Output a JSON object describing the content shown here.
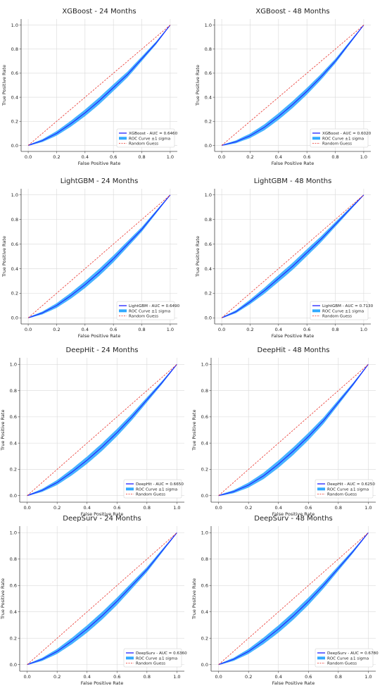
{
  "colors": {
    "roc_line": "#1f1fff",
    "band": "#33aaff",
    "random": "#e8312a",
    "grid": "#d9d9d9",
    "axis": "#444444"
  },
  "chart_data": [
    {
      "type": "line",
      "title": "XGBoost - 24 Months",
      "xlabel": "False Positive Rate",
      "ylabel": "True Positive Rate",
      "xlim": [
        0,
        1
      ],
      "ylim": [
        0,
        1
      ],
      "xticks": [
        "0.0",
        "0.2",
        "0.4",
        "0.6",
        "0.8",
        "1.0"
      ],
      "yticks": [
        "0.0",
        "0.2",
        "0.4",
        "0.6",
        "0.8",
        "1.0"
      ],
      "grid": true,
      "legend_position": "lower right",
      "auc": 0.646,
      "series": [
        {
          "name": "XGBoost - AUC = 0.6460",
          "x": [
            0,
            0.1,
            0.2,
            0.3,
            0.4,
            0.5,
            0.6,
            0.7,
            0.8,
            0.9,
            1.0
          ],
          "y": [
            0.0,
            0.04,
            0.1,
            0.18,
            0.27,
            0.37,
            0.48,
            0.59,
            0.72,
            0.85,
            1.0
          ]
        },
        {
          "name": "ROC Curve ±1 sigma",
          "sigma": 0.025
        },
        {
          "name": "Random Guess",
          "x": [
            0,
            1
          ],
          "y": [
            0,
            1
          ]
        }
      ]
    },
    {
      "type": "line",
      "title": "XGBoost - 48 Months",
      "xlabel": "False Positive Rate",
      "ylabel": "True Positive Rate",
      "xlim": [
        0,
        1
      ],
      "ylim": [
        0,
        1
      ],
      "xticks": [
        "0.0",
        "0.2",
        "0.4",
        "0.6",
        "0.8",
        "1.0"
      ],
      "yticks": [
        "0.0",
        "0.2",
        "0.4",
        "0.6",
        "0.8",
        "1.0"
      ],
      "grid": true,
      "legend_position": "lower right",
      "auc": 0.602,
      "series": [
        {
          "name": "XGBoost - AUC = 0.6020",
          "x": [
            0,
            0.1,
            0.2,
            0.3,
            0.4,
            0.5,
            0.6,
            0.7,
            0.8,
            0.9,
            1.0
          ],
          "y": [
            0.0,
            0.03,
            0.08,
            0.15,
            0.24,
            0.34,
            0.45,
            0.57,
            0.7,
            0.85,
            1.0
          ]
        },
        {
          "name": "ROC Curve ±1 sigma",
          "sigma": 0.025
        },
        {
          "name": "Random Guess",
          "x": [
            0,
            1
          ],
          "y": [
            0,
            1
          ]
        }
      ]
    },
    {
      "type": "line",
      "title": "LightGBM - 24 Months",
      "xlabel": "False Positive Rate",
      "ylabel": "True Positive Rate",
      "xlim": [
        0,
        1
      ],
      "ylim": [
        0,
        1
      ],
      "xticks": [
        "0.0",
        "0.2",
        "0.4",
        "0.6",
        "0.8",
        "1.0"
      ],
      "yticks": [
        "0.0",
        "0.2",
        "0.4",
        "0.6",
        "0.8",
        "1.0"
      ],
      "grid": true,
      "legend_position": "lower right",
      "auc": 0.649,
      "series": [
        {
          "name": "LightGBM - AUC = 0.6490",
          "x": [
            0,
            0.1,
            0.2,
            0.3,
            0.4,
            0.5,
            0.6,
            0.7,
            0.8,
            0.9,
            1.0
          ],
          "y": [
            0.0,
            0.04,
            0.1,
            0.18,
            0.27,
            0.37,
            0.48,
            0.6,
            0.72,
            0.86,
            1.0
          ]
        },
        {
          "name": "ROC Curve ±1 sigma",
          "sigma": 0.025
        },
        {
          "name": "Random Guess",
          "x": [
            0,
            1
          ],
          "y": [
            0,
            1
          ]
        }
      ]
    },
    {
      "type": "line",
      "title": "LightGBM - 48 Months",
      "xlabel": "False Positive Rate",
      "ylabel": "True Positive Rate",
      "xlim": [
        0,
        1
      ],
      "ylim": [
        0,
        1
      ],
      "xticks": [
        "0.0",
        "0.2",
        "0.4",
        "0.6",
        "0.8",
        "1.0"
      ],
      "yticks": [
        "0.0",
        "0.2",
        "0.4",
        "0.6",
        "0.8",
        "1.0"
      ],
      "grid": true,
      "legend_position": "lower right",
      "auc": 0.713,
      "series": [
        {
          "name": "LightGBM - AUC = 0.7130",
          "x": [
            0,
            0.1,
            0.2,
            0.3,
            0.4,
            0.5,
            0.6,
            0.7,
            0.8,
            0.9,
            1.0
          ],
          "y": [
            0.0,
            0.05,
            0.13,
            0.22,
            0.32,
            0.42,
            0.53,
            0.64,
            0.76,
            0.88,
            1.0
          ]
        },
        {
          "name": "ROC Curve ±1 sigma",
          "sigma": 0.025
        },
        {
          "name": "Random Guess",
          "x": [
            0,
            1
          ],
          "y": [
            0,
            1
          ]
        }
      ]
    },
    {
      "type": "line",
      "title": "DeepHit - 24 Months",
      "xlabel": "False Positive Rate",
      "ylabel": "True Positive Rate",
      "xlim": [
        0,
        1
      ],
      "ylim": [
        0,
        1
      ],
      "xticks": [
        "0.0",
        "0.2",
        "0.4",
        "0.6",
        "0.8",
        "1.0"
      ],
      "yticks": [
        "0.0",
        "0.2",
        "0.4",
        "0.6",
        "0.8",
        "1.0"
      ],
      "grid": true,
      "legend_position": "lower right",
      "auc": 0.665,
      "series": [
        {
          "name": "DeepHit - AUC = 0.6650",
          "x": [
            0,
            0.1,
            0.2,
            0.3,
            0.4,
            0.5,
            0.6,
            0.7,
            0.8,
            0.9,
            1.0
          ],
          "y": [
            0.0,
            0.04,
            0.1,
            0.18,
            0.27,
            0.37,
            0.48,
            0.6,
            0.73,
            0.86,
            1.0
          ]
        },
        {
          "name": "ROC Curve ±1 sigma",
          "sigma": 0.025
        },
        {
          "name": "Random Guess",
          "x": [
            0,
            1
          ],
          "y": [
            0,
            1
          ]
        }
      ]
    },
    {
      "type": "line",
      "title": "DeepHit - 48 Months",
      "xlabel": "False Positive Rate",
      "ylabel": "True Positive Rate",
      "xlim": [
        0,
        1
      ],
      "ylim": [
        0,
        1
      ],
      "xticks": [
        "0.0",
        "0.2",
        "0.4",
        "0.6",
        "0.8",
        "1.0"
      ],
      "yticks": [
        "0.0",
        "0.2",
        "0.4",
        "0.6",
        "0.8",
        "1.0"
      ],
      "grid": true,
      "legend_position": "lower right",
      "auc": 0.625,
      "series": [
        {
          "name": "DeepHit - AUC = 0.6250",
          "x": [
            0,
            0.1,
            0.2,
            0.3,
            0.4,
            0.5,
            0.6,
            0.7,
            0.8,
            0.9,
            1.0
          ],
          "y": [
            0.0,
            0.03,
            0.08,
            0.15,
            0.24,
            0.34,
            0.45,
            0.57,
            0.71,
            0.85,
            1.0
          ]
        },
        {
          "name": "ROC Curve ±1 sigma",
          "sigma": 0.025
        },
        {
          "name": "Random Guess",
          "x": [
            0,
            1
          ],
          "y": [
            0,
            1
          ]
        }
      ]
    },
    {
      "type": "line",
      "title": "DeepSurv - 24 Months",
      "xlabel": "False Positive Rate",
      "ylabel": "True Positive Rate",
      "xlim": [
        0,
        1
      ],
      "ylim": [
        0,
        1
      ],
      "xticks": [
        "0.0",
        "0.2",
        "0.4",
        "0.6",
        "0.8",
        "1.0"
      ],
      "yticks": [
        "0.0",
        "0.2",
        "0.4",
        "0.6",
        "0.8",
        "1.0"
      ],
      "grid": true,
      "legend_position": "lower right",
      "auc": 0.636,
      "series": [
        {
          "name": "DeepSurv - AUC = 0.6360",
          "x": [
            0,
            0.1,
            0.2,
            0.3,
            0.4,
            0.5,
            0.6,
            0.7,
            0.8,
            0.9,
            1.0
          ],
          "y": [
            0.0,
            0.04,
            0.1,
            0.18,
            0.27,
            0.37,
            0.48,
            0.6,
            0.72,
            0.86,
            1.0
          ]
        },
        {
          "name": "ROC Curve ±1 sigma",
          "sigma": 0.025
        },
        {
          "name": "Random Guess",
          "x": [
            0,
            1
          ],
          "y": [
            0,
            1
          ]
        }
      ]
    },
    {
      "type": "line",
      "title": "DeepSurv - 48 Months",
      "xlabel": "False Positive Rate",
      "ylabel": "True Positive Rate",
      "xlim": [
        0,
        1
      ],
      "ylim": [
        0,
        1
      ],
      "xticks": [
        "0.0",
        "0.2",
        "0.4",
        "0.6",
        "0.8",
        "1.0"
      ],
      "yticks": [
        "0.0",
        "0.2",
        "0.4",
        "0.6",
        "0.8",
        "1.0"
      ],
      "grid": true,
      "legend_position": "lower right",
      "auc": 0.678,
      "series": [
        {
          "name": "DeepSurv - AUC = 0.6780",
          "x": [
            0,
            0.1,
            0.2,
            0.3,
            0.4,
            0.5,
            0.6,
            0.7,
            0.8,
            0.9,
            1.0
          ],
          "y": [
            0.0,
            0.04,
            0.1,
            0.18,
            0.27,
            0.37,
            0.48,
            0.6,
            0.73,
            0.86,
            1.0
          ]
        },
        {
          "name": "ROC Curve ±1 sigma",
          "sigma": 0.025
        },
        {
          "name": "Random Guess",
          "x": [
            0,
            1
          ],
          "y": [
            0,
            1
          ]
        }
      ]
    }
  ]
}
